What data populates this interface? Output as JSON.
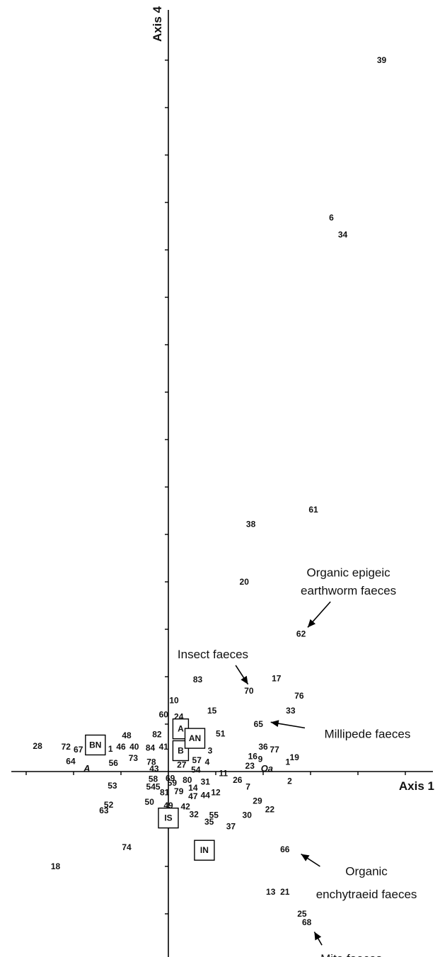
{
  "chart_data": {
    "type": "scatter",
    "xlabel": "Axis 1",
    "ylabel": "Axis 4",
    "points": [
      {
        "label": "39",
        "x": 2.25,
        "y": 7.5
      },
      {
        "label": "6",
        "x": 1.72,
        "y": 5.84
      },
      {
        "label": "34",
        "x": 1.84,
        "y": 5.66
      },
      {
        "label": "61",
        "x": 1.53,
        "y": 2.76
      },
      {
        "label": "38",
        "x": 0.87,
        "y": 2.61
      },
      {
        "label": "20",
        "x": 0.8,
        "y": 2.0
      },
      {
        "label": "62",
        "x": 1.4,
        "y": 1.45
      },
      {
        "label": "83",
        "x": 0.31,
        "y": 0.97
      },
      {
        "label": "70",
        "x": 0.85,
        "y": 0.85
      },
      {
        "label": "17",
        "x": 1.14,
        "y": 0.98
      },
      {
        "label": "76",
        "x": 1.38,
        "y": 0.8
      },
      {
        "label": "10",
        "x": 0.06,
        "y": 0.75
      },
      {
        "label": "15",
        "x": 0.46,
        "y": 0.64
      },
      {
        "label": "33",
        "x": 1.29,
        "y": 0.64
      },
      {
        "label": "60",
        "x": -0.05,
        "y": 0.6
      },
      {
        "label": "24",
        "x": 0.11,
        "y": 0.58
      },
      {
        "label": "65",
        "x": 0.95,
        "y": 0.5
      },
      {
        "label": "51",
        "x": 0.55,
        "y": 0.4
      },
      {
        "label": "48",
        "x": -0.44,
        "y": 0.38
      },
      {
        "label": "82",
        "x": -0.12,
        "y": 0.39
      },
      {
        "label": "28",
        "x": -1.38,
        "y": 0.27
      },
      {
        "label": "72",
        "x": -1.08,
        "y": 0.26
      },
      {
        "label": "67",
        "x": -0.95,
        "y": 0.23
      },
      {
        "label": "1",
        "x": -0.61,
        "y": 0.24
      },
      {
        "label": "46",
        "x": -0.5,
        "y": 0.26
      },
      {
        "label": "40",
        "x": -0.36,
        "y": 0.26
      },
      {
        "label": "84",
        "x": -0.19,
        "y": 0.25
      },
      {
        "label": "41",
        "x": -0.05,
        "y": 0.26
      },
      {
        "label": "36",
        "x": 1.0,
        "y": 0.26
      },
      {
        "label": "77",
        "x": 1.12,
        "y": 0.23
      },
      {
        "label": "3",
        "x": 0.44,
        "y": 0.22
      },
      {
        "label": "64",
        "x": -1.03,
        "y": 0.11
      },
      {
        "label": "73",
        "x": -0.37,
        "y": 0.14
      },
      {
        "label": "56",
        "x": -0.58,
        "y": 0.09
      },
      {
        "label": "78",
        "x": -0.18,
        "y": 0.1
      },
      {
        "label": "57",
        "x": 0.3,
        "y": 0.12
      },
      {
        "label": "4",
        "x": 0.41,
        "y": 0.1
      },
      {
        "label": "27",
        "x": 0.14,
        "y": 0.07
      },
      {
        "label": "16",
        "x": 0.89,
        "y": 0.16
      },
      {
        "label": "9",
        "x": 0.97,
        "y": 0.13
      },
      {
        "label": "19",
        "x": 1.33,
        "y": 0.15
      },
      {
        "label": "1",
        "x": 1.26,
        "y": 0.1
      },
      {
        "label": "23",
        "x": 0.86,
        "y": 0.06
      },
      {
        "label": "43",
        "x": -0.15,
        "y": 0.03
      },
      {
        "label": "54",
        "x": 0.29,
        "y": 0.02
      },
      {
        "label": "11",
        "x": 0.58,
        "y": -0.02
      },
      {
        "label": "69",
        "x": 0.02,
        "y": -0.07
      },
      {
        "label": "80",
        "x": 0.2,
        "y": -0.09
      },
      {
        "label": "58",
        "x": -0.16,
        "y": -0.08
      },
      {
        "label": "26",
        "x": 0.73,
        "y": -0.09
      },
      {
        "label": "2",
        "x": 1.28,
        "y": -0.1
      },
      {
        "label": "53",
        "x": -0.59,
        "y": -0.15
      },
      {
        "label": "545",
        "x": -0.16,
        "y": -0.16
      },
      {
        "label": "59",
        "x": 0.04,
        "y": -0.12
      },
      {
        "label": "31",
        "x": 0.39,
        "y": -0.11
      },
      {
        "label": "7",
        "x": 0.84,
        "y": -0.16
      },
      {
        "label": "14",
        "x": 0.26,
        "y": -0.17
      },
      {
        "label": "81",
        "x": -0.04,
        "y": -0.22
      },
      {
        "label": "79",
        "x": 0.11,
        "y": -0.21
      },
      {
        "label": "12",
        "x": 0.5,
        "y": -0.22
      },
      {
        "label": "47",
        "x": 0.26,
        "y": -0.26
      },
      {
        "label": "44",
        "x": 0.39,
        "y": -0.25
      },
      {
        "label": "50",
        "x": -0.2,
        "y": -0.32
      },
      {
        "label": "29",
        "x": 0.94,
        "y": -0.31
      },
      {
        "label": "49",
        "x": 0.0,
        "y": -0.36
      },
      {
        "label": "42",
        "x": 0.18,
        "y": -0.37
      },
      {
        "label": "52",
        "x": -0.63,
        "y": -0.35
      },
      {
        "label": "22",
        "x": 1.07,
        "y": -0.4
      },
      {
        "label": "63",
        "x": -0.68,
        "y": -0.41
      },
      {
        "label": "32",
        "x": 0.27,
        "y": -0.45
      },
      {
        "label": "55",
        "x": 0.48,
        "y": -0.46
      },
      {
        "label": "30",
        "x": 0.83,
        "y": -0.46
      },
      {
        "label": "35",
        "x": 0.43,
        "y": -0.53
      },
      {
        "label": "37",
        "x": 0.66,
        "y": -0.58
      },
      {
        "label": "74",
        "x": -0.44,
        "y": -0.8
      },
      {
        "label": "66",
        "x": 1.23,
        "y": -0.82
      },
      {
        "label": "18",
        "x": -1.19,
        "y": -1.0
      },
      {
        "label": "13",
        "x": 1.08,
        "y": -1.27
      },
      {
        "label": "21",
        "x": 1.23,
        "y": -1.27
      },
      {
        "label": "25",
        "x": 1.41,
        "y": -1.5
      },
      {
        "label": "68",
        "x": 1.46,
        "y": -1.59
      }
    ],
    "boxed_labels": [
      {
        "label": "BN",
        "x": -0.77,
        "y": 0.28
      },
      {
        "label": "A",
        "x": 0.13,
        "y": 0.45
      },
      {
        "label": "B",
        "x": 0.13,
        "y": 0.22
      },
      {
        "label": "AN",
        "x": 0.28,
        "y": 0.35
      },
      {
        "label": "IS",
        "x": 0.0,
        "y": -0.49
      },
      {
        "label": "IN",
        "x": 0.38,
        "y": -0.83
      }
    ],
    "italic_labels": [
      {
        "label": "A",
        "x": -0.86,
        "y": 0.03
      },
      {
        "label": "Oa",
        "x": 1.04,
        "y": 0.03
      }
    ],
    "annotations": [
      {
        "text": "Organic epigeic",
        "tx": 1.9,
        "ty": 2.1,
        "ax1": 1.71,
        "ay1": 1.79,
        "ax2": 1.47,
        "ay2": 1.52
      },
      {
        "text": "earthworm faeces",
        "tx": 1.9,
        "ty": 1.91
      },
      {
        "text": "Insect faeces",
        "tx": 0.47,
        "ty": 1.24,
        "ax1": 0.71,
        "ay1": 1.12,
        "ax2": 0.84,
        "ay2": 0.92
      },
      {
        "text": "Millipede faeces",
        "tx": 2.1,
        "ty": 0.4,
        "ax1": 1.44,
        "ay1": 0.46,
        "ax2": 1.08,
        "ay2": 0.52
      },
      {
        "text": "Organic",
        "tx": 2.09,
        "ty": -1.05,
        "ax1": 1.6,
        "ay1": -1.0,
        "ax2": 1.4,
        "ay2": -0.87
      },
      {
        "text": "enchytraeid faeces",
        "tx": 2.09,
        "ty": -1.29
      },
      {
        "text": "Mite faeces",
        "tx": 1.93,
        "ty": -1.97,
        "ax1": 1.62,
        "ay1": -1.83,
        "ax2": 1.54,
        "ay2": -1.69
      }
    ],
    "xlim": [
      -1.6,
      2.7
    ],
    "ylim": [
      -2.1,
      7.9
    ],
    "tick_step": 0.5
  }
}
